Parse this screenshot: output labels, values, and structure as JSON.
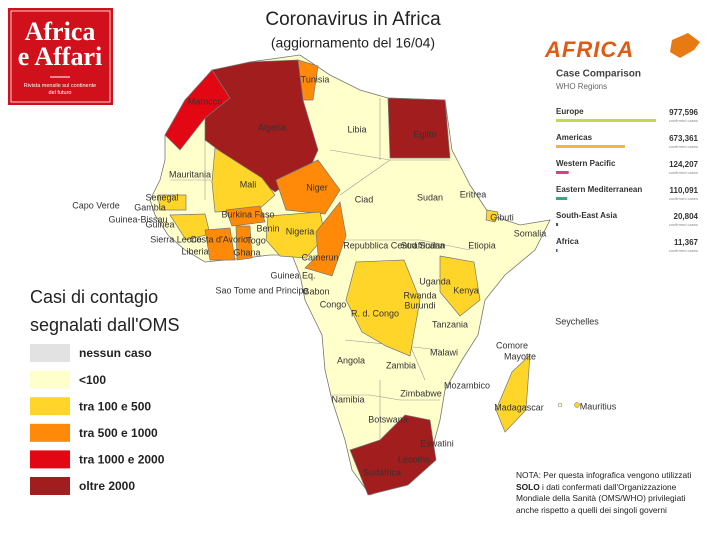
{
  "header": {
    "title": "Coronavirus in Africa",
    "subtitle": "(aggiornamento del 16/04)"
  },
  "logo": {
    "line1": "Africa",
    "line2": "e Affari",
    "tagline": "Rivista mensile sul continente del futuro"
  },
  "legend": {
    "title_lines": [
      "Casi di contagio",
      "segnalati dall'OMS"
    ],
    "items": [
      {
        "label": "nessun caso",
        "color": "#e2e2e2"
      },
      {
        "label": "<100",
        "color": "#ffffcc"
      },
      {
        "label": "tra 100 e 500",
        "color": "#ffd52a"
      },
      {
        "label": "tra 500 e 1000",
        "color": "#ff8a0a"
      },
      {
        "label": "tra 1000 e 2000",
        "color": "#e30613"
      },
      {
        "label": "oltre 2000",
        "color": "#a21d1d"
      }
    ]
  },
  "comparison": {
    "brand": "AFRICA",
    "title": "Case Comparison",
    "subtitle": "WHO Regions",
    "unit": "confirmed cases",
    "regions": [
      {
        "name": "Europe",
        "cases": 977596,
        "cases_label": "977,596",
        "color": "#c5d84a"
      },
      {
        "name": "Americas",
        "cases": 673361,
        "cases_label": "673,361",
        "color": "#f6b33d"
      },
      {
        "name": "Western Pacific",
        "cases": 124207,
        "cases_label": "124,207",
        "color": "#d6418a"
      },
      {
        "name": "Eastern Mediterranean",
        "cases": 110091,
        "cases_label": "110,091",
        "color": "#3fa37f"
      },
      {
        "name": "South-East Asia",
        "cases": 20804,
        "cases_label": "20,804",
        "color": "#555555"
      },
      {
        "name": "Africa",
        "cases": 11367,
        "cases_label": "11,367",
        "color": "#3a5fa8"
      }
    ]
  },
  "note": {
    "before": "NOTA: Per questa infografica vengono utilizzati ",
    "bold": "SOLO",
    "after": " i dati confermati dall'Organizzazione Mondiale della Sanità (OMS/WHO) privilegiati anche rispetto a quelli dei singoli  governi"
  },
  "countries": [
    {
      "name": "Tunisia",
      "category": 3
    },
    {
      "name": "Marocco",
      "category": 4
    },
    {
      "name": "Algeria",
      "category": 5
    },
    {
      "name": "Libia",
      "category": 1
    },
    {
      "name": "Egitto",
      "category": 5
    },
    {
      "name": "Mauritania",
      "category": 1
    },
    {
      "name": "Mali",
      "category": 2
    },
    {
      "name": "Niger",
      "category": 3
    },
    {
      "name": "Ciad",
      "category": 1
    },
    {
      "name": "Sudan",
      "category": 1
    },
    {
      "name": "Eritrea",
      "category": 1
    },
    {
      "name": "Senegal",
      "category": 2
    },
    {
      "name": "Gambia",
      "category": 1
    },
    {
      "name": "Guinea-Bissau",
      "category": 1
    },
    {
      "name": "Guinea",
      "category": 2
    },
    {
      "name": "Capo Verde",
      "category": 1
    },
    {
      "name": "Burkina Faso",
      "category": 3
    },
    {
      "name": "Gibuti",
      "category": 2
    },
    {
      "name": "Somalia",
      "category": 1
    },
    {
      "name": "Benin",
      "category": 1
    },
    {
      "name": "Sierra Leone",
      "category": 1
    },
    {
      "name": "Costa d'Avorio",
      "category": 3
    },
    {
      "name": "Togo",
      "category": 1
    },
    {
      "name": "Nigeria",
      "category": 2
    },
    {
      "name": "Repubblica Centrafricana",
      "category": 1
    },
    {
      "name": "Sud Sudan",
      "category": 1
    },
    {
      "name": "Etiopia",
      "category": 1
    },
    {
      "name": "Liberia",
      "category": 1
    },
    {
      "name": "Ghana",
      "category": 3
    },
    {
      "name": "Camerun",
      "category": 3
    },
    {
      "name": "Guinea Eq.",
      "category": 1
    },
    {
      "name": "Uganda",
      "category": 1
    },
    {
      "name": "Kenya",
      "category": 2
    },
    {
      "name": "Sao Tome and Principe",
      "category": 1
    },
    {
      "name": "Gabon",
      "category": 1
    },
    {
      "name": "Rwanda",
      "category": 1
    },
    {
      "name": "Burundi",
      "category": 1
    },
    {
      "name": "Congo",
      "category": 1
    },
    {
      "name": "R. d. Congo",
      "category": 2
    },
    {
      "name": "Tanzania",
      "category": 1
    },
    {
      "name": "Seychelles",
      "category": 1
    },
    {
      "name": "Comore",
      "category": 0
    },
    {
      "name": "Mayotte",
      "category": 1
    },
    {
      "name": "Malawi",
      "category": 1
    },
    {
      "name": "Angola",
      "category": 1
    },
    {
      "name": "Zambia",
      "category": 1
    },
    {
      "name": "Mozambico",
      "category": 1
    },
    {
      "name": "Namibia",
      "category": 1
    },
    {
      "name": "Zimbabwe",
      "category": 1
    },
    {
      "name": "Madagascar",
      "category": 2
    },
    {
      "name": "Mauritius",
      "category": 2
    },
    {
      "name": "Botswana",
      "category": 1
    },
    {
      "name": "Eswatini",
      "category": 1
    },
    {
      "name": "Lesotho",
      "category": 1
    },
    {
      "name": "Sudafrica",
      "category": 5
    }
  ]
}
